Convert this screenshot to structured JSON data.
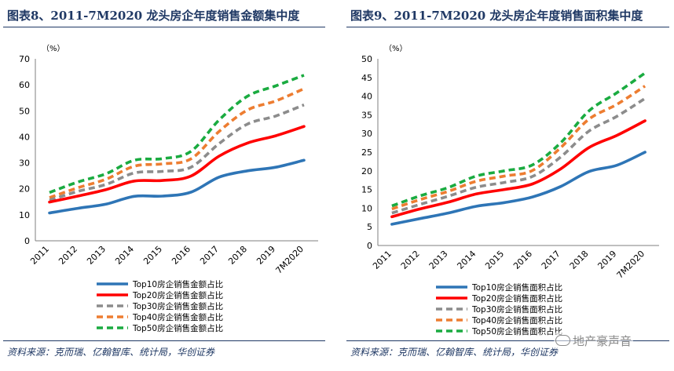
{
  "chart_data": [
    {
      "type": "line",
      "title": "图表8、2011-7M2020 龙头房企年度销售金额集中度",
      "ylabel": "（%）",
      "xlabel": "",
      "categories": [
        "2011",
        "2012",
        "2013",
        "2014",
        "2015",
        "2016",
        "2017",
        "2018",
        "2019",
        "7M2020"
      ],
      "ylim": [
        0,
        70
      ],
      "yticks": [
        0,
        10,
        20,
        30,
        40,
        50,
        60,
        70
      ],
      "legend_position": "bottom",
      "source": "资料来源：克而瑞、亿翰智库、统计局，华创证券",
      "series": [
        {
          "name": "Top10房企销售金额占比",
          "color": "#2e75b6",
          "dash": "solid",
          "values": [
            10.7,
            12.5,
            14.1,
            17.1,
            17.2,
            18.7,
            24.5,
            26.9,
            28.3,
            31.0
          ]
        },
        {
          "name": "Top20房企销售金额占比",
          "color": "#ff0000",
          "dash": "solid",
          "values": [
            14.9,
            17.2,
            19.7,
            23.0,
            23.2,
            24.9,
            32.6,
            37.6,
            40.4,
            44.0
          ]
        },
        {
          "name": "Top30房企销售金额占比",
          "color": "#8c8c8c",
          "dash": "dashed",
          "values": [
            15.6,
            19.0,
            21.7,
            26.1,
            26.7,
            28.3,
            37.4,
            44.9,
            48.0,
            52.3
          ]
        },
        {
          "name": "Top40房企销售金额占比",
          "color": "#ed7d31",
          "dash": "dashed",
          "values": [
            16.6,
            20.4,
            23.7,
            28.7,
            29.6,
            31.5,
            42.1,
            50.3,
            53.8,
            58.5
          ]
        },
        {
          "name": "Top50房企销售金额占比",
          "color": "#1aab40",
          "dash": "dashed",
          "values": [
            18.6,
            22.6,
            25.8,
            31.0,
            31.6,
            34.4,
            46.5,
            55.6,
            59.6,
            63.7
          ]
        }
      ]
    },
    {
      "type": "line",
      "title": "图表9、2011-7M2020 龙头房企年度销售面积集中度",
      "ylabel": "（%）",
      "xlabel": "",
      "categories": [
        "2011",
        "2012",
        "2013",
        "2014",
        "2015",
        "2016",
        "2017",
        "2018",
        "2019",
        "7M2020"
      ],
      "ylim": [
        0,
        50
      ],
      "yticks": [
        0,
        5,
        10,
        15,
        20,
        25,
        30,
        35,
        40,
        45,
        50
      ],
      "legend_position": "bottom",
      "source": "资料来源：克而瑞、亿翰智库、统计局，华创证券",
      "series": [
        {
          "name": "Top10房企销售面积占比",
          "color": "#2e75b6",
          "dash": "solid",
          "values": [
            5.7,
            7.2,
            8.7,
            10.5,
            11.5,
            13.0,
            15.8,
            19.8,
            21.5,
            25.0
          ]
        },
        {
          "name": "Top20房企销售面积占比",
          "color": "#ff0000",
          "dash": "solid",
          "values": [
            7.7,
            9.8,
            11.6,
            13.8,
            15.0,
            16.5,
            20.5,
            26.2,
            29.5,
            33.4
          ]
        },
        {
          "name": "Top30房企销售面积占比",
          "color": "#8c8c8c",
          "dash": "dashed",
          "values": [
            8.7,
            11.0,
            13.2,
            15.6,
            16.9,
            18.5,
            23.7,
            30.6,
            34.6,
            39.4
          ]
        },
        {
          "name": "Top40房企销售面积占比",
          "color": "#ed7d31",
          "dash": "dashed",
          "values": [
            9.8,
            12.3,
            14.5,
            17.2,
            18.6,
            20.1,
            26.2,
            33.8,
            37.8,
            42.7
          ]
        },
        {
          "name": "Top50房企销售面积占比",
          "color": "#1aab40",
          "dash": "dashed",
          "values": [
            10.6,
            13.3,
            15.5,
            18.6,
            20.0,
            21.6,
            27.5,
            36.0,
            40.9,
            46.2
          ]
        }
      ]
    }
  ],
  "watermark": "地产豪声音"
}
